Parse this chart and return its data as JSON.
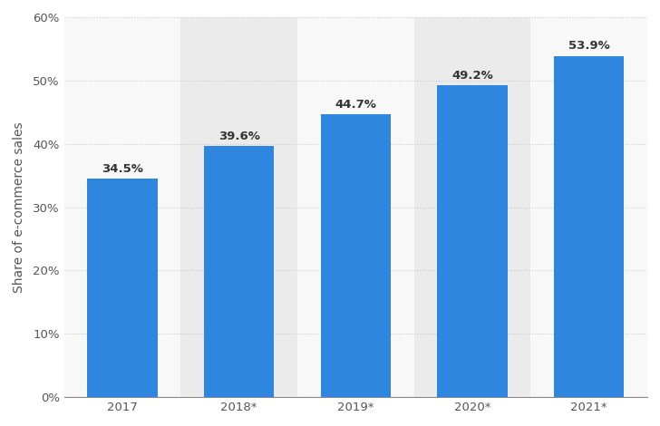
{
  "categories": [
    "2017",
    "2018*",
    "2019*",
    "2020*",
    "2021*"
  ],
  "values": [
    34.5,
    39.6,
    44.7,
    49.2,
    53.9
  ],
  "bar_color": "#2e86de",
  "ylabel": "Share of e-commerce sales",
  "ylim": [
    0,
    60
  ],
  "yticks": [
    0,
    10,
    20,
    30,
    40,
    50,
    60
  ],
  "ytick_labels": [
    "0%",
    "10%",
    "20%",
    "30%",
    "40%",
    "50%",
    "60%"
  ],
  "label_fontsize": 10,
  "value_fontsize": 9.5,
  "tick_fontsize": 9.5,
  "background_color": "#ffffff",
  "plot_bg_color": "#f8f8f8",
  "grid_color": "#cccccc",
  "highlight_columns": [
    1,
    3
  ],
  "highlight_color": "#ebebeb"
}
